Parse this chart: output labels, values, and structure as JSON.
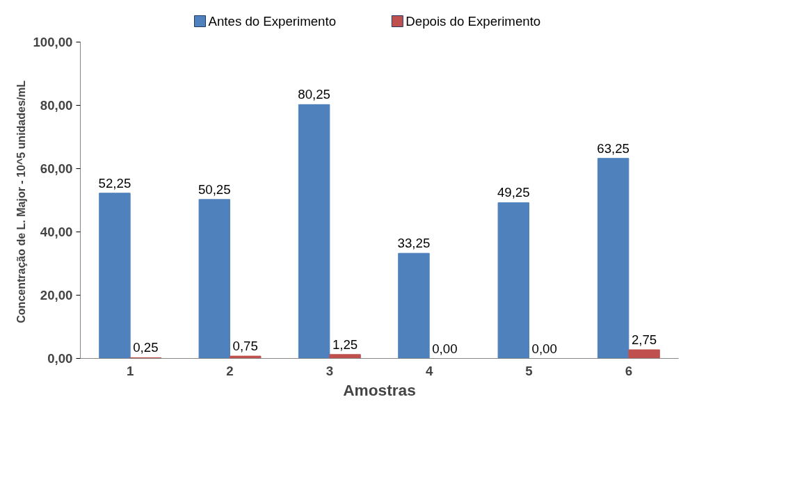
{
  "chart_data": {
    "type": "bar",
    "xlabel": "Amostras",
    "ylabel": "Concentração de L. Major -  10^5 unidades/mL",
    "categories": [
      "1",
      "2",
      "3",
      "4",
      "5",
      "6"
    ],
    "series": [
      {
        "name": "Antes do Experimento",
        "color": "#4f81bd",
        "values": [
          52.25,
          50.25,
          80.25,
          33.25,
          49.25,
          63.25
        ],
        "value_labels": [
          "52,25",
          "50,25",
          "80,25",
          "33,25",
          "49,25",
          "63,25"
        ]
      },
      {
        "name": "Depois do Experimento",
        "color": "#c0504d",
        "values": [
          0.25,
          0.75,
          1.25,
          0,
          0,
          2.75
        ],
        "value_labels": [
          "0,25",
          "0,75",
          "1,25",
          "0,00",
          "0,00",
          "2,75"
        ]
      }
    ],
    "ylim": [
      0,
      100
    ],
    "yticks": [
      {
        "value": 0,
        "label": "0,00"
      },
      {
        "value": 20,
        "label": "20,00"
      },
      {
        "value": 40,
        "label": "40,00"
      },
      {
        "value": 60,
        "label": "60,00"
      },
      {
        "value": 80,
        "label": "80,00"
      },
      {
        "value": 100,
        "label": "100,00"
      }
    ],
    "grid": false,
    "legend": "top"
  }
}
